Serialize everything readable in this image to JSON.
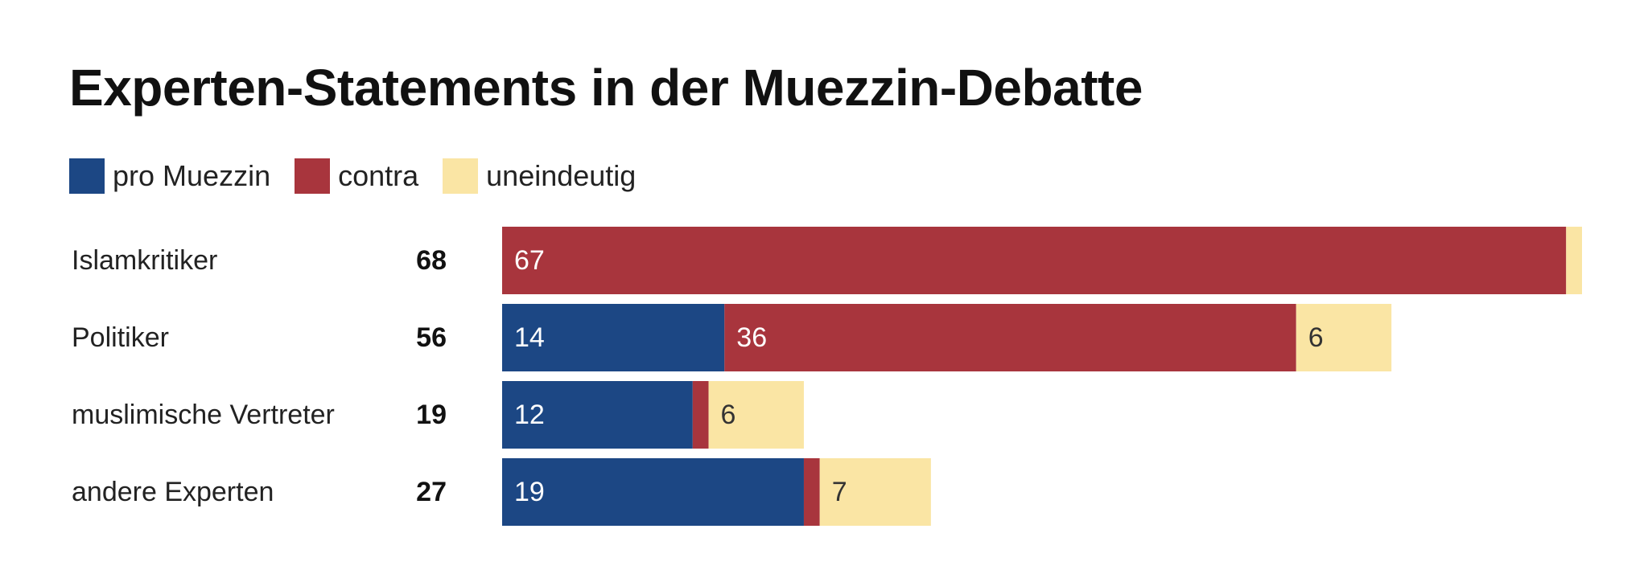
{
  "chart_data": {
    "type": "bar",
    "orientation": "horizontal",
    "stacked": true,
    "title": "Experten-Statements in der Muezzin-Debatte",
    "categories": [
      "Islamkritiker",
      "Politiker",
      "muslimische Vertreter",
      "andere Experten"
    ],
    "totals": [
      "68",
      "56",
      "19",
      "27"
    ],
    "series": [
      {
        "name": "pro Muezzin",
        "color": "#1c4784",
        "label_color": "#ffffff",
        "values": [
          0,
          14,
          12,
          19
        ]
      },
      {
        "name": "contra",
        "color": "#a8353d",
        "label_color": "#ffffff",
        "values": [
          67,
          36,
          1,
          1
        ]
      },
      {
        "name": "uneindeutig",
        "color": "#fae5a4",
        "label_color": "#333333",
        "values": [
          1,
          6,
          6,
          7
        ]
      }
    ],
    "data_labels": [
      [
        "",
        "67",
        ""
      ],
      [
        "14",
        "36",
        "6"
      ],
      [
        "12",
        "",
        "6"
      ],
      [
        "19",
        "",
        "7"
      ]
    ],
    "xlim": [
      0,
      68
    ],
    "grid": false,
    "legend_position": "top-left"
  }
}
